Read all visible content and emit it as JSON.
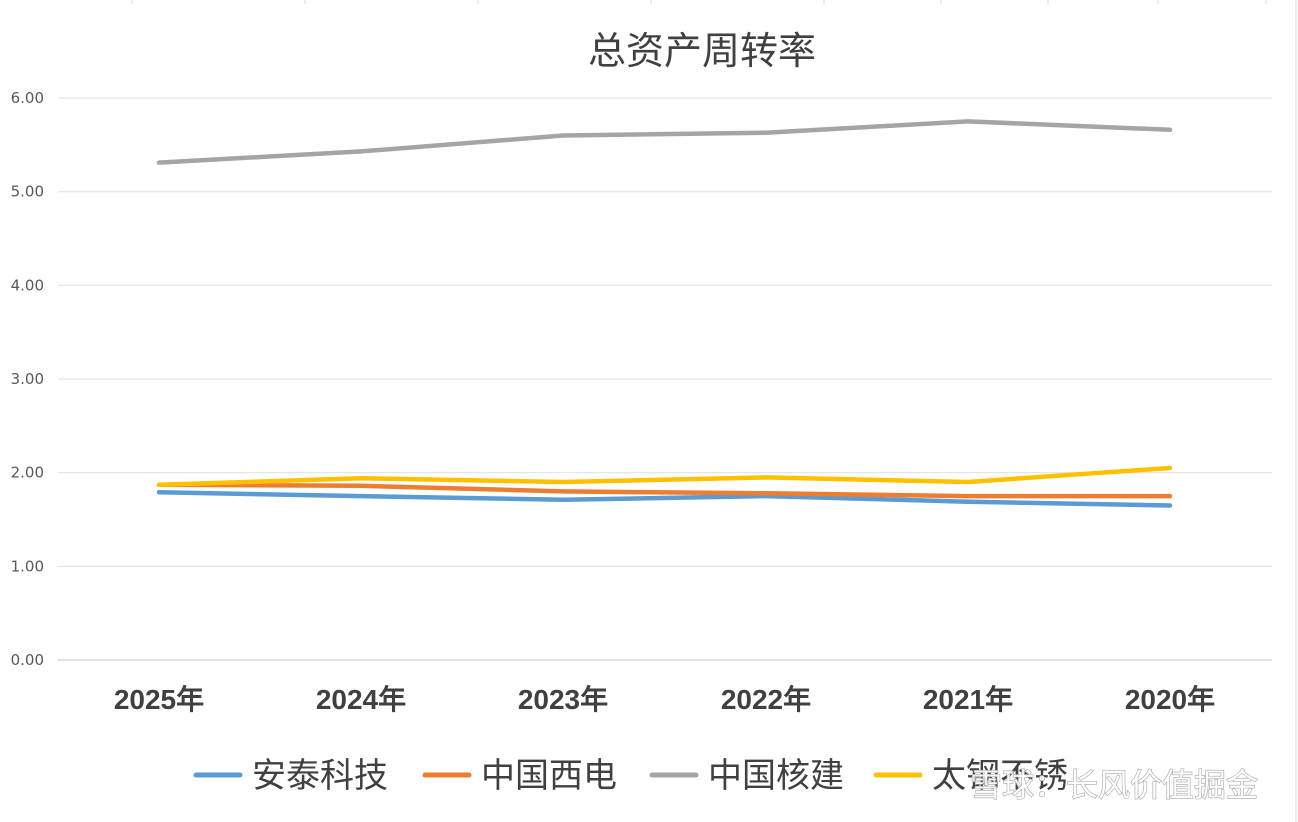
{
  "chart_data": {
    "type": "line",
    "title": "总资产周转率",
    "categories": [
      "2025年",
      "2024年",
      "2023年",
      "2022年",
      "2021年",
      "2020年"
    ],
    "ylim": [
      0,
      6
    ],
    "yticks": [
      "0.00",
      "1.00",
      "2.00",
      "3.00",
      "4.00",
      "5.00",
      "6.00"
    ],
    "grid": true,
    "legend": "bottom",
    "series": [
      {
        "name": "安泰科技",
        "color": "#5b9bd5",
        "values": [
          1.79,
          1.75,
          1.71,
          1.75,
          1.69,
          1.65
        ]
      },
      {
        "name": "中国西电",
        "color": "#ed7d31",
        "values": [
          1.87,
          1.86,
          1.8,
          1.78,
          1.75,
          1.75
        ]
      },
      {
        "name": "中国核建",
        "color": "#a5a5a5",
        "values": [
          5.31,
          5.43,
          5.6,
          5.63,
          5.75,
          5.66
        ]
      },
      {
        "name": "太钢不锈",
        "color": "#ffc000",
        "values": [
          1.87,
          1.94,
          1.9,
          1.95,
          1.9,
          2.05
        ]
      }
    ]
  },
  "watermark": "雪球：长风价值掘金"
}
